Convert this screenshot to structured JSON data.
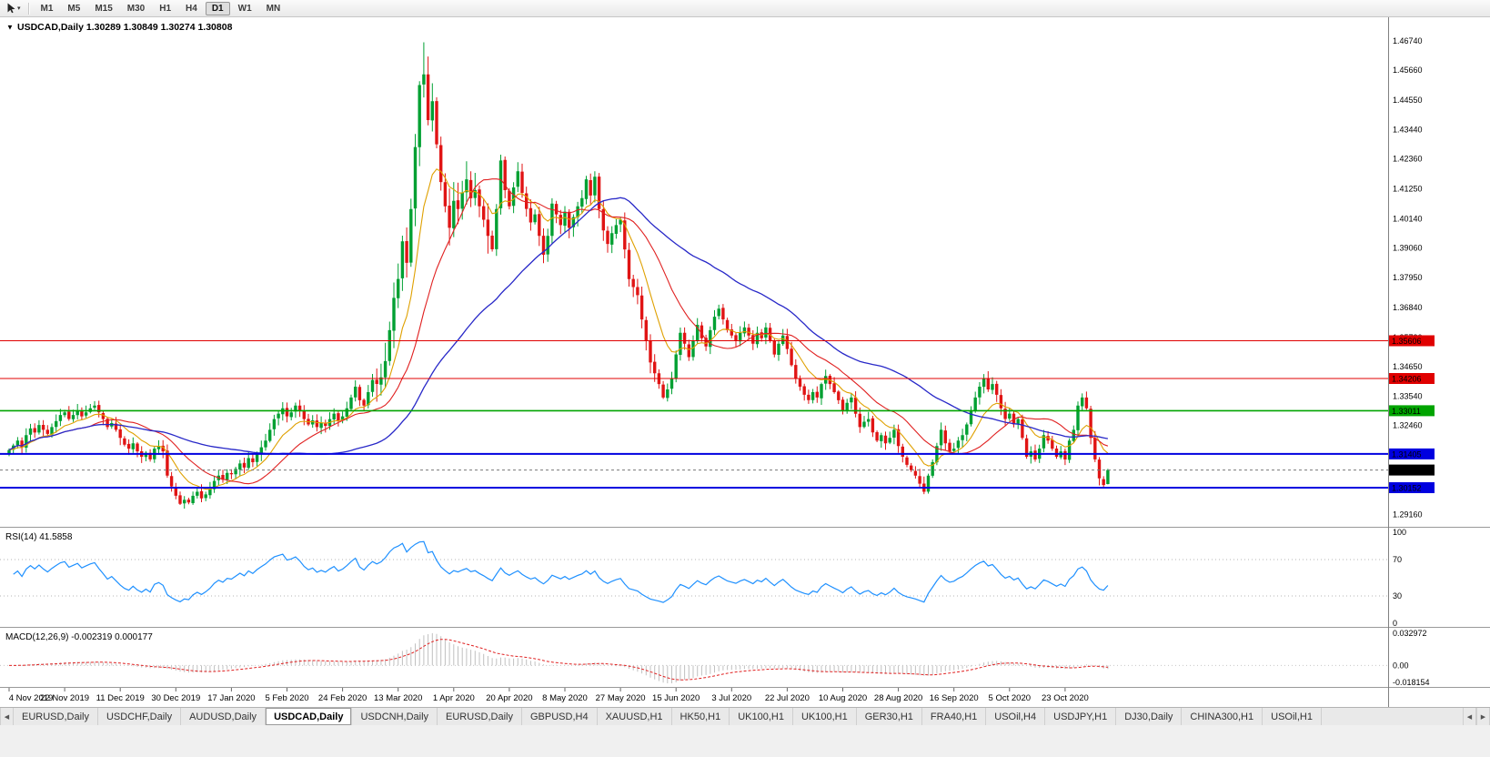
{
  "icons": {
    "dropdown_caret": "▾",
    "chart_menu": "▼",
    "tab_scroll_left": "◀",
    "tab_scroll_right": "▶"
  },
  "toolbar": {
    "timeframes": [
      "M1",
      "M5",
      "M15",
      "M30",
      "H1",
      "H4",
      "D1",
      "W1",
      "MN"
    ],
    "active_timeframe": "D1"
  },
  "chart": {
    "title": "USDCAD,Daily",
    "ohlc": {
      "open": "1.30289",
      "high": "1.30849",
      "low": "1.30274",
      "close": "1.30808"
    },
    "price_axis_labels": [
      "1.46740",
      "1.45660",
      "1.44550",
      "1.43440",
      "1.42360",
      "1.41250",
      "1.40140",
      "1.39060",
      "1.37950",
      "1.36840",
      "1.35730",
      "1.34650",
      "1.33540",
      "1.32460",
      "1.31350",
      "1.30240",
      "1.29160"
    ],
    "levels": [
      {
        "price": 1.35606,
        "label": "1.35606",
        "color": "#E00000",
        "width": 1
      },
      {
        "price": 1.34206,
        "label": "1.34206",
        "color": "#E00000",
        "width": 1
      },
      {
        "price": 1.33011,
        "label": "1.33011",
        "color": "#00A400",
        "width": 1.6
      },
      {
        "price": 1.31405,
        "label": "1.31405",
        "color": "#0000E0",
        "width": 2
      },
      {
        "price": 1.30152,
        "label": "1.30152",
        "color": "#0000E0",
        "width": 2
      }
    ],
    "current_price": {
      "price": 1.30808,
      "label": "1.30808",
      "color": "#000000"
    },
    "date_axis": [
      "4 Nov 2019",
      "22 Nov 2019",
      "11 Dec 2019",
      "30 Dec 2019",
      "17 Jan 2020",
      "5 Feb 2020",
      "24 Feb 2020",
      "13 Mar 2020",
      "1 Apr 2020",
      "20 Apr 2020",
      "8 May 2020",
      "27 May 2020",
      "15 Jun 2020",
      "3 Jul 2020",
      "22 Jul 2020",
      "10 Aug 2020",
      "28 Aug 2020",
      "16 Sep 2020",
      "5 Oct 2020",
      "23 Oct 2020"
    ],
    "colors": {
      "up": "#00A032",
      "down": "#E01414",
      "ma_fast": "#DFA000",
      "ma_mid": "#E02020",
      "ma_slow": "#2828C8",
      "rsi": "#1E90FF",
      "macd_hist": "#C0C0C0",
      "macd_signal": "#E02020"
    }
  },
  "rsi": {
    "label": "RSI(14) 41.5858",
    "axis": [
      {
        "value": 100,
        "label": "100"
      },
      {
        "value": 70,
        "label": "70"
      },
      {
        "value": 30,
        "label": "30"
      },
      {
        "value": 0,
        "label": "0"
      }
    ],
    "level_lines": [
      70,
      30
    ]
  },
  "macd": {
    "label": "MACD(12,26,9) -0.002319 0.000177",
    "axis_top": "0.032972",
    "axis_zero": "0.00",
    "axis_bottom": "-0.018154"
  },
  "chart_data": {
    "type": "candlestick",
    "symbol": "USDCAD",
    "timeframe": "Daily",
    "title": "USDCAD,Daily 1.30289 1.30849 1.30274 1.30808",
    "x_labels": [
      "4 Nov 2019",
      "22 Nov 2019",
      "11 Dec 2019",
      "30 Dec 2019",
      "17 Jan 2020",
      "5 Feb 2020",
      "24 Feb 2020",
      "13 Mar 2020",
      "1 Apr 2020",
      "20 Apr 2020",
      "8 May 2020",
      "27 May 2020",
      "15 Jun 2020",
      "3 Jul 2020",
      "22 Jul 2020",
      "10 Aug 2020",
      "28 Aug 2020",
      "16 Sep 2020",
      "5 Oct 2020",
      "23 Oct 2020"
    ],
    "label_every_n_bars": 13,
    "price_range": {
      "top": 1.4755,
      "bottom": 1.288
    },
    "current_bar": {
      "open": 1.30289,
      "high": 1.30849,
      "low": 1.30274,
      "close": 1.30808
    },
    "extremes": {
      "high": 1.4669,
      "low": 1.2951
    },
    "closes": [
      1.3155,
      1.3172,
      1.319,
      1.3165,
      1.321,
      1.3235,
      1.322,
      1.3248,
      1.323,
      1.3215,
      1.324,
      1.3262,
      1.3285,
      1.3295,
      1.327,
      1.3285,
      1.33,
      1.328,
      1.3295,
      1.331,
      1.332,
      1.3295,
      1.327,
      1.324,
      1.3255,
      1.323,
      1.32,
      1.3175,
      1.316,
      1.318,
      1.315,
      1.313,
      1.3145,
      1.312,
      1.316,
      1.317,
      1.315,
      1.306,
      1.302,
      1.2985,
      1.2955,
      1.297,
      1.296,
      1.2985,
      1.3,
      1.2975,
      1.299,
      1.301,
      1.304,
      1.306,
      1.3045,
      1.307,
      1.3065,
      1.3085,
      1.3105,
      1.309,
      1.3125,
      1.311,
      1.314,
      1.3165,
      1.319,
      1.323,
      1.327,
      1.329,
      1.331,
      1.328,
      1.3295,
      1.332,
      1.33,
      1.327,
      1.325,
      1.3265,
      1.324,
      1.3255,
      1.3245,
      1.327,
      1.329,
      1.3265,
      1.328,
      1.331,
      1.335,
      1.339,
      1.334,
      1.332,
      1.337,
      1.3415,
      1.34,
      1.3425,
      1.3485,
      1.36,
      1.372,
      1.379,
      1.393,
      1.385,
      1.405,
      1.428,
      1.451,
      1.455,
      1.438,
      1.445,
      1.429,
      1.415,
      1.406,
      1.398,
      1.408,
      1.405,
      1.411,
      1.416,
      1.409,
      1.412,
      1.406,
      1.401,
      1.395,
      1.39,
      1.405,
      1.423,
      1.412,
      1.406,
      1.413,
      1.419,
      1.411,
      1.405,
      1.4,
      1.403,
      1.395,
      1.388,
      1.395,
      1.407,
      1.403,
      1.399,
      1.404,
      1.398,
      1.402,
      1.406,
      1.409,
      1.416,
      1.41,
      1.417,
      1.405,
      1.397,
      1.392,
      1.396,
      1.399,
      1.401,
      1.39,
      1.379,
      1.376,
      1.373,
      1.364,
      1.356,
      1.348,
      1.344,
      1.34,
      1.335,
      1.338,
      1.342,
      1.351,
      1.359,
      1.355,
      1.35,
      1.356,
      1.362,
      1.357,
      1.354,
      1.36,
      1.365,
      1.368,
      1.364,
      1.36,
      1.358,
      1.356,
      1.359,
      1.361,
      1.358,
      1.355,
      1.359,
      1.357,
      1.361,
      1.356,
      1.351,
      1.355,
      1.358,
      1.353,
      1.347,
      1.342,
      1.339,
      1.336,
      1.334,
      1.337,
      1.335,
      1.34,
      1.343,
      1.34,
      1.337,
      1.334,
      1.33,
      1.333,
      1.335,
      1.329,
      1.324,
      1.326,
      1.327,
      1.322,
      1.319,
      1.321,
      1.318,
      1.32,
      1.323,
      1.317,
      1.313,
      1.31,
      1.308,
      1.306,
      1.303,
      1.3,
      1.306,
      1.311,
      1.317,
      1.323,
      1.318,
      1.315,
      1.316,
      1.319,
      1.321,
      1.325,
      1.33,
      1.335,
      1.339,
      1.342,
      1.338,
      1.34,
      1.336,
      1.331,
      1.327,
      1.329,
      1.325,
      1.327,
      1.32,
      1.313,
      1.315,
      1.312,
      1.316,
      1.321,
      1.319,
      1.316,
      1.313,
      1.315,
      1.312,
      1.319,
      1.323,
      1.332,
      1.335,
      1.331,
      1.32,
      1.312,
      1.305,
      1.3025,
      1.3081
    ],
    "indicators": [
      {
        "name": "RSI",
        "period": 14,
        "last_value": 41.5858
      },
      {
        "name": "MACD",
        "params": [
          12,
          26,
          9
        ],
        "last_values": [
          -0.002319,
          0.000177
        ]
      },
      {
        "name": "MovingAverages",
        "periods": [
          10,
          20,
          50
        ]
      }
    ]
  },
  "tabs": {
    "active_index": 3,
    "items": [
      "EURUSD,Daily",
      "USDCHF,Daily",
      "AUDUSD,Daily",
      "USDCAD,Daily",
      "USDCNH,Daily",
      "EURUSD,Daily",
      "GBPUSD,H4",
      "XAUUSD,H1",
      "HK50,H1",
      "UK100,H1",
      "UK100,H1",
      "GER30,H1",
      "FRA40,H1",
      "USOil,H4",
      "USDJPY,H1",
      "DJ30,Daily",
      "CHINA300,H1",
      "USOil,H1"
    ]
  }
}
